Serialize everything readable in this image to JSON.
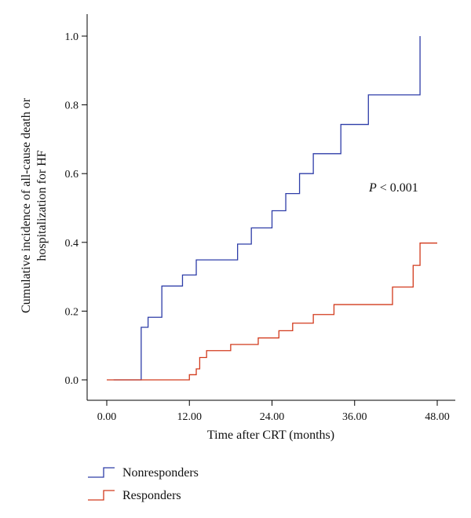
{
  "chart_data": {
    "type": "line",
    "step": "post",
    "xlabel": "Time after CRT (months)",
    "ylabel_lines": [
      "Cumulative incidence of all-cause death or",
      "hospitalization for HF"
    ],
    "xlim": [
      0,
      48
    ],
    "ylim": [
      0,
      1.0
    ],
    "x_ticks": [
      0,
      12,
      24,
      36,
      48
    ],
    "x_tick_labels": [
      "0.00",
      "12.00",
      "24.00",
      "36.00",
      "48.00"
    ],
    "y_ticks": [
      0,
      0.2,
      0.4,
      0.6,
      0.8,
      1.0
    ],
    "y_tick_labels": [
      "0.0",
      "0.2",
      "0.4",
      "0.6",
      "0.8",
      "1.0"
    ],
    "annotation": {
      "italic": "P",
      "rest": " < 0.001"
    },
    "series": [
      {
        "name": "Nonresponders",
        "color": "#2e3da8",
        "x": [
          1.0,
          5.0,
          6.0,
          8.0,
          11.0,
          13.0,
          19.0,
          21.0,
          24.0,
          26.0,
          28.0,
          30.0,
          34.0,
          38.0,
          45.5,
          45.5
        ],
        "y": [
          0.0,
          0.153,
          0.182,
          0.273,
          0.305,
          0.349,
          0.395,
          0.442,
          0.492,
          0.542,
          0.6,
          0.658,
          0.743,
          0.829,
          0.914,
          1.0
        ]
      },
      {
        "name": "Responders",
        "color": "#d23a1c",
        "x": [
          0.0,
          2.0,
          12.0,
          13.0,
          13.5,
          14.5,
          18.0,
          22.0,
          25.0,
          27.0,
          30.0,
          33.0,
          41.5,
          44.5,
          45.5,
          48.0
        ],
        "y": [
          0.0,
          0.0,
          0.015,
          0.032,
          0.065,
          0.085,
          0.103,
          0.122,
          0.143,
          0.165,
          0.19,
          0.219,
          0.27,
          0.333,
          0.398,
          0.398
        ]
      }
    ]
  }
}
